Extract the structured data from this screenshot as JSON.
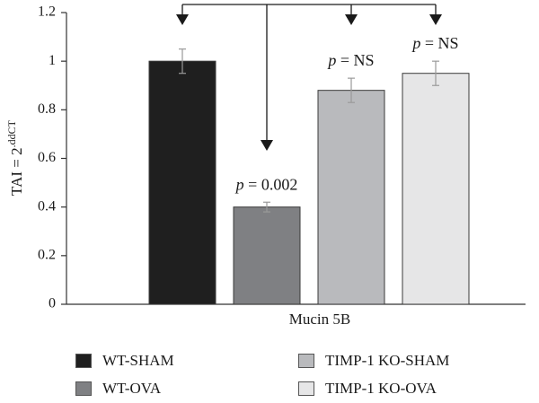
{
  "chart_data": {
    "type": "bar",
    "categories": [
      "WT-SHAM",
      "WT-OVA",
      "TIMP-1 KO-SHAM",
      "TIMP-1 KO-OVA"
    ],
    "values": [
      1.0,
      0.4,
      0.88,
      0.95
    ],
    "errors": [
      0.05,
      0.02,
      0.05,
      0.05
    ],
    "colors": [
      "#1f1f1f",
      "#7f8083",
      "#b9babd",
      "#e6e6e7"
    ],
    "annotations": [
      "",
      "p = 0.002",
      "p = NS",
      "p = NS"
    ],
    "xlabel": "Mucin 5B",
    "ylabel": "TAI = 2.ddCT",
    "ylim": [
      0,
      1.2
    ],
    "yticks": [
      "0",
      "0.2",
      "0.4",
      "0.6",
      "0.8",
      "1",
      "1.2"
    ],
    "grid": false,
    "legend_position": "bottom",
    "comparison": "WT-SHAM vs each group"
  }
}
